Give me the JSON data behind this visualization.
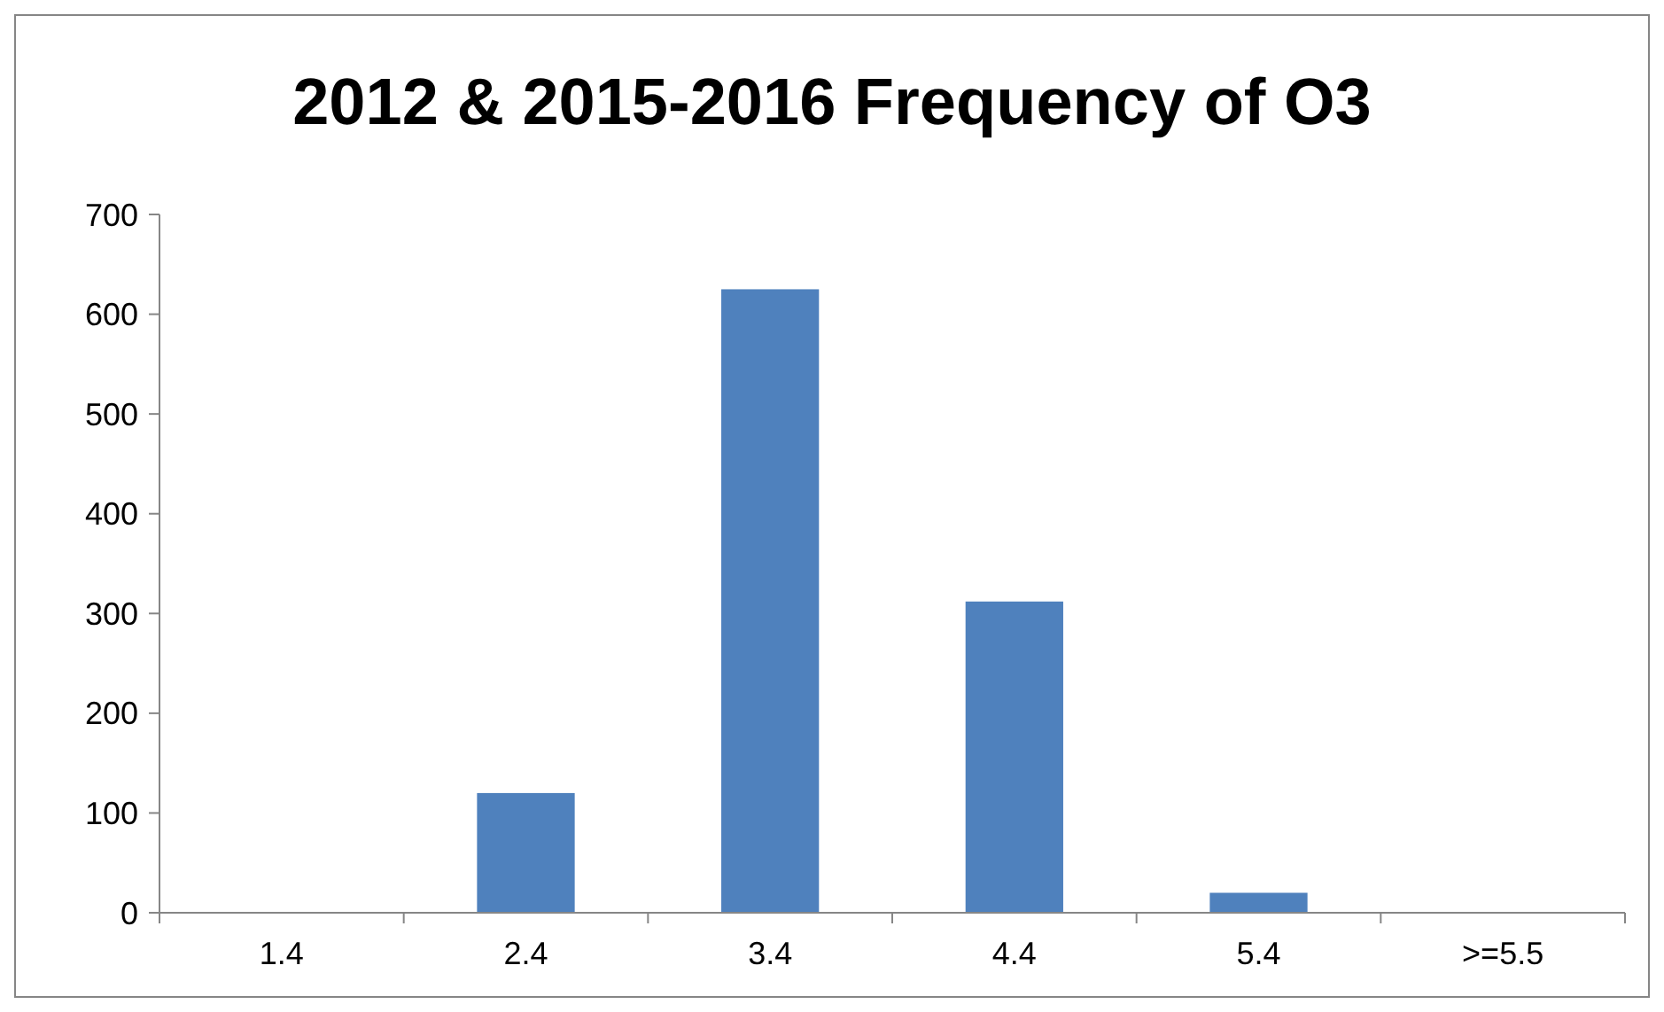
{
  "chart_data": {
    "type": "bar",
    "title": "2012 & 2015-2016 Frequency of O3",
    "categories": [
      "1.4",
      "2.4",
      "3.4",
      "4.4",
      "5.4",
      ">=5.5"
    ],
    "values": [
      0,
      120,
      625,
      312,
      20,
      0
    ],
    "color": "#4f81bd",
    "ylim": [
      0,
      700
    ],
    "yticks": [
      0,
      100,
      200,
      300,
      400,
      500,
      600,
      700
    ],
    "grid": false
  }
}
